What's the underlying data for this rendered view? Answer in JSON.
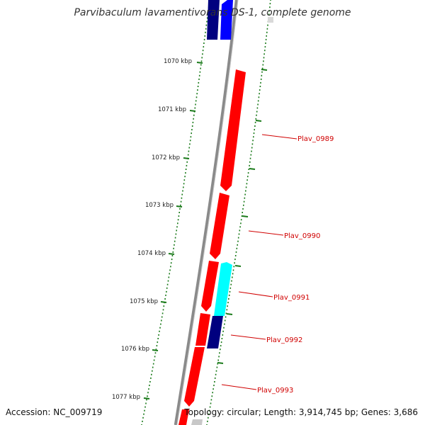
{
  "title": "Parvibaculum lavamentivorans DS-1, complete genome",
  "accession": "Accession: NC_009719",
  "summary": "Topology: circular; Length: 3,914,745 bp; Genes: 3,686",
  "colors": {
    "backbone": "#808080",
    "tick": "#1a7a1a",
    "gene_label": "#d00000",
    "forward_strand_red": "#ff0000",
    "navy": "#00007f",
    "blue": "#0000ff",
    "cyan": "#00ffff"
  },
  "scale_labels": [
    "1070 kbp",
    "1071 kbp",
    "1072 kbp",
    "1073 kbp",
    "1074 kbp",
    "1075 kbp",
    "1076 kbp",
    "1077 kbp"
  ],
  "gene_labels": [
    "Plav_0989",
    "Plav_0990",
    "Plav_0991",
    "Plav_0992",
    "Plav_0993"
  ]
}
